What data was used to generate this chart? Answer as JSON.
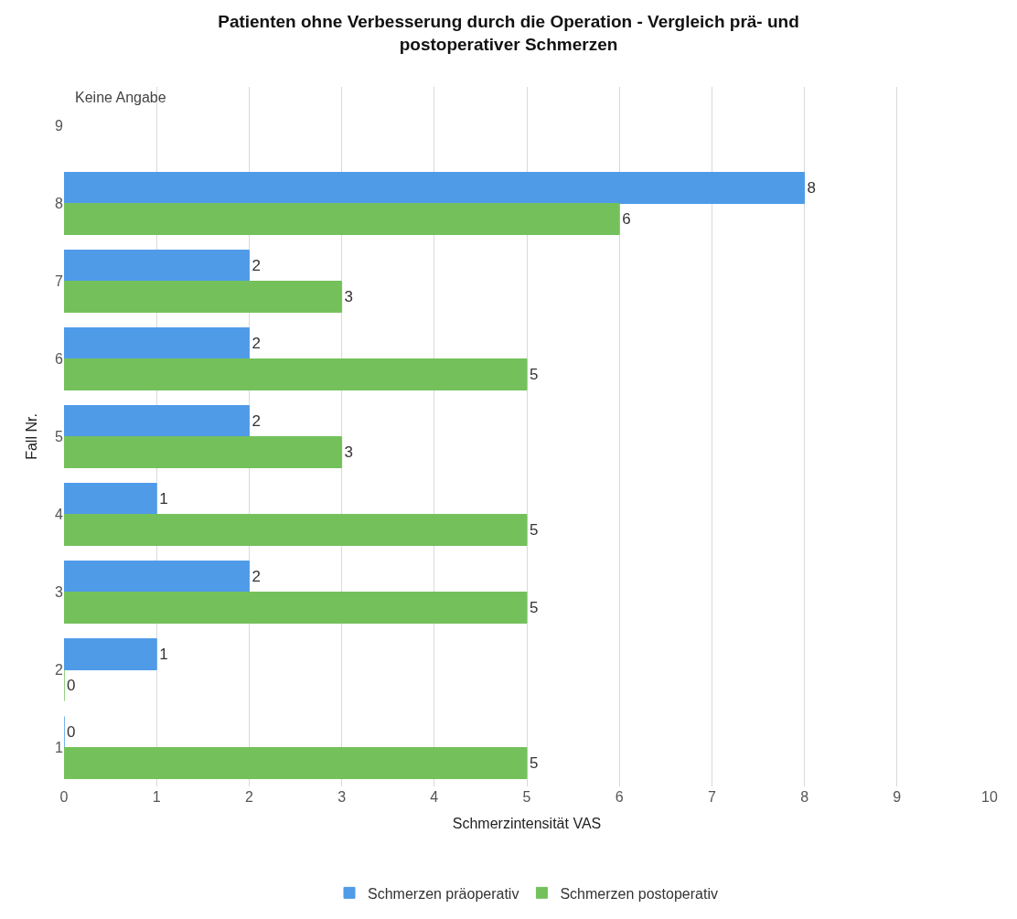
{
  "chart_data": {
    "type": "bar",
    "orientation": "horizontal",
    "title": "Patienten ohne Verbesserung durch die Operation - Vergleich prä- und postoperativer Schmerzen",
    "xlabel": "Schmerzintensität VAS",
    "ylabel": "Fall Nr.",
    "categories": [
      "9",
      "8",
      "7",
      "6",
      "5",
      "4",
      "3",
      "2",
      "1"
    ],
    "series": [
      {
        "name": "Schmerzen präoperativ",
        "color": "#4f9be8",
        "values": [
          null,
          8,
          2,
          2,
          2,
          1,
          2,
          1,
          0
        ]
      },
      {
        "name": "Schmerzen postoperativ",
        "color": "#74c15c",
        "values": [
          null,
          6,
          3,
          5,
          3,
          5,
          5,
          0,
          5
        ]
      }
    ],
    "xlim": [
      0,
      10
    ],
    "xticks": [
      0,
      1,
      2,
      3,
      4,
      5,
      6,
      7,
      8,
      9,
      10
    ],
    "grid": "x",
    "legend": "bottom",
    "data_labels": true,
    "annotations": [
      "Keine Angabe"
    ]
  }
}
